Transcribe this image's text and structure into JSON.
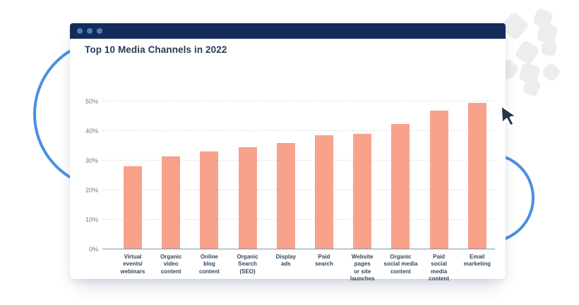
{
  "window": {
    "titlebar": {
      "control_dots_count": 3
    },
    "colors": {
      "titlebar_bg": "#132c59",
      "dot": "#4c7dbf"
    }
  },
  "chart_data": {
    "type": "bar",
    "title": "Top 10 Media Channels in 2022",
    "categories": [
      "Virtual\nevents/\nwebinars",
      "Organic\nvideo\ncontent",
      "Online\nblog\ncontent",
      "Organic\nSearch\n(SEO)",
      "Display\nads",
      "Paid\nsearch",
      "Website\npages\nor site\nlaunches",
      "Organic\nsocial media\ncontent",
      "Paid\nsocial\nmedia\ncontent",
      "Email\nmarketing"
    ],
    "values": [
      28,
      31.5,
      33,
      34.5,
      36,
      38.5,
      39,
      42.5,
      47,
      49.5
    ],
    "value_unit": "%",
    "y_ticks": [
      "0%",
      "10%",
      "20%",
      "30%",
      "40%",
      "50%"
    ],
    "ylim": [
      0,
      50
    ],
    "xlabel": "",
    "ylabel": "",
    "grid": "horizontal-dashed",
    "legend": "none",
    "bar_color": "#f8a28c",
    "axis_line_color": "#7b99b5",
    "gridline_color": "#e0e4ea",
    "tick_label_color": "#6b7c90",
    "category_label_color": "#33475b",
    "title_color": "#243c56"
  },
  "decorations": {
    "left_shape": "circle-outline",
    "right_shape": "circle-outline",
    "circle_color": "#4a90e2",
    "confetti_shape": "rounded-square-cluster",
    "confetti_color": "#ebedef",
    "cursor": "mouse-pointer",
    "cursor_color": "#233649"
  }
}
